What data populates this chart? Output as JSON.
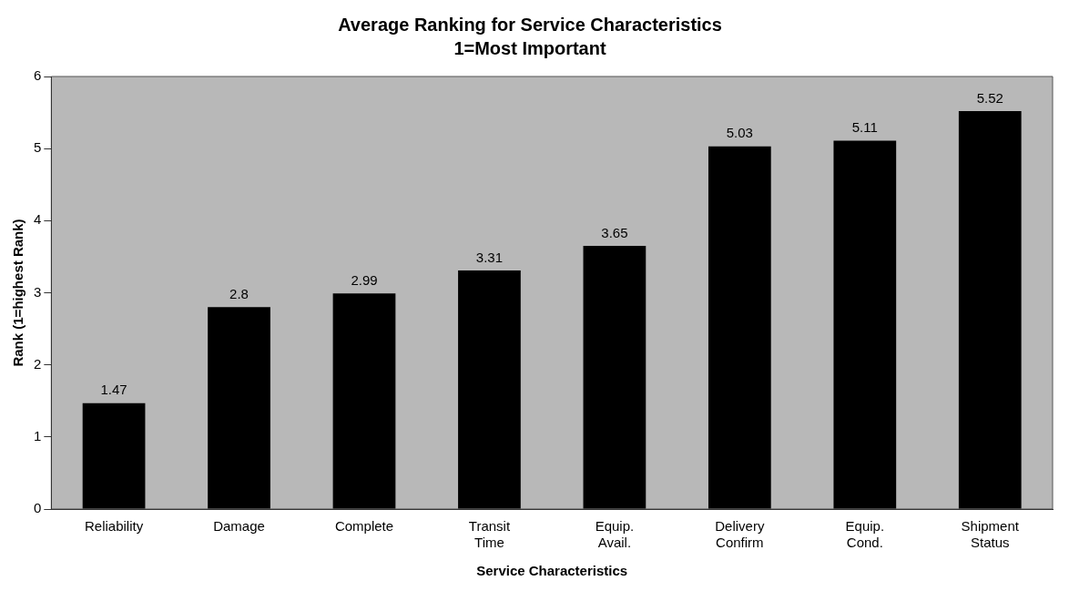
{
  "chart_data": {
    "type": "bar",
    "title": "Average Ranking for Service Characteristics",
    "subtitle": "1=Most Important",
    "xlabel": "Service Characteristics",
    "ylabel": "Rank (1=highest Rank)",
    "categories": [
      "Reliability",
      "Damage",
      "Complete",
      "Transit Time",
      "Equip. Avail.",
      "Delivery Confirm",
      "Equip. Cond.",
      "Shipment Status"
    ],
    "values": [
      1.47,
      2.8,
      2.99,
      3.31,
      3.65,
      5.03,
      5.11,
      5.52
    ],
    "color": "#000000",
    "ylim": [
      0,
      6
    ],
    "yticks": [
      0,
      1,
      2,
      3,
      4,
      5,
      6
    ],
    "grid": false,
    "legend": false,
    "data_labels": true
  }
}
